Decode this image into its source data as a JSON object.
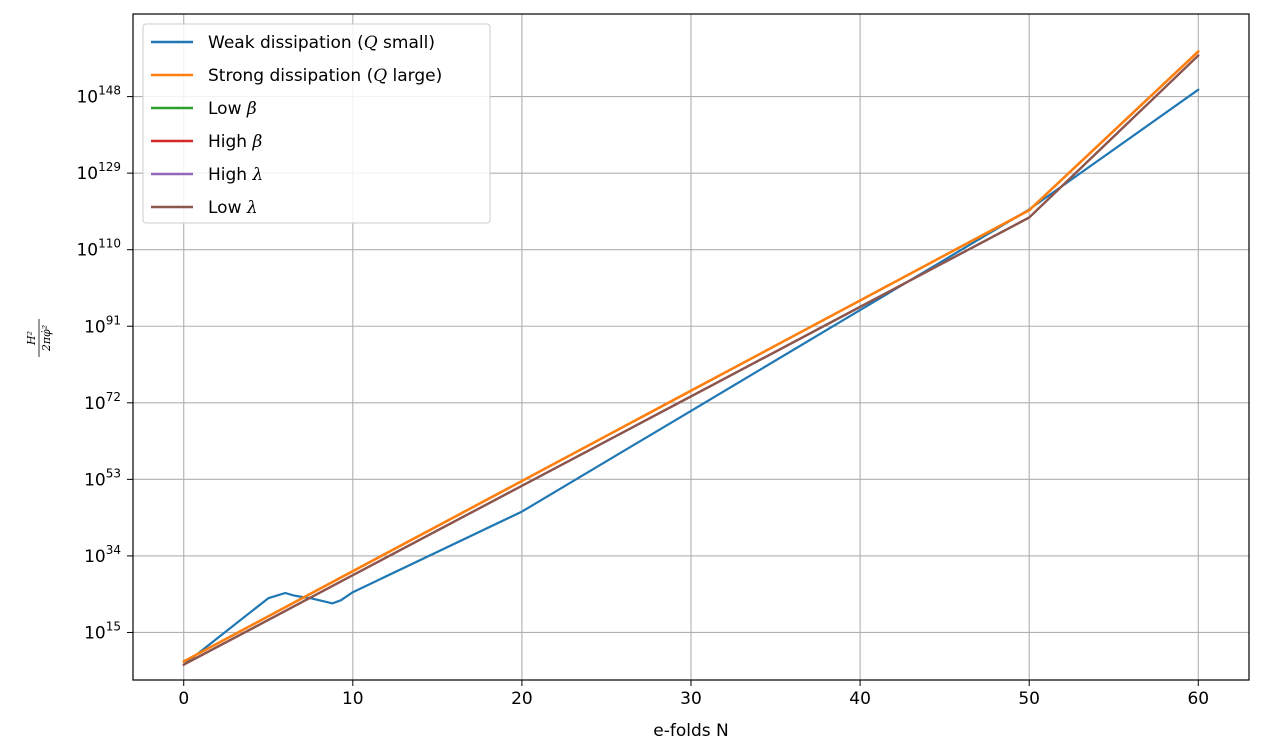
{
  "chart_data": {
    "type": "line",
    "xlabel": "e-folds N",
    "ylabel": "H² / 2πφ̇²",
    "ylabel_num": "H²",
    "ylabel_den": "2πφ̇²",
    "xlim": [
      -3,
      63
    ],
    "ylim_log10": [
      3.2,
      168.5
    ],
    "y_scale": "log",
    "grid": true,
    "legend_position": "top-left",
    "x_ticks": [
      0,
      10,
      20,
      30,
      40,
      50,
      60
    ],
    "x_tick_labels": [
      "0",
      "10",
      "20",
      "30",
      "40",
      "50",
      "60"
    ],
    "y_ticks_log10": [
      15,
      34,
      53,
      72,
      91,
      110,
      129,
      148
    ],
    "y_tick_labels": [
      {
        "base": "10",
        "exp": "15"
      },
      {
        "base": "10",
        "exp": "34"
      },
      {
        "base": "10",
        "exp": "53"
      },
      {
        "base": "10",
        "exp": "72"
      },
      {
        "base": "10",
        "exp": "91"
      },
      {
        "base": "10",
        "exp": "110"
      },
      {
        "base": "10",
        "exp": "129"
      },
      {
        "base": "10",
        "exp": "148"
      }
    ],
    "series": [
      {
        "name": "Weak dissipation (Q small)",
        "legend_label": {
          "pre": "Weak dissipation (",
          "sym": "Q",
          "post": " small)"
        },
        "color": "#1f77b4",
        "x": [
          0,
          5,
          6,
          6.5,
          7,
          7.5,
          8,
          8.5,
          8.8,
          9.3,
          10,
          20,
          30,
          40,
          50,
          60
        ],
        "log10_y": [
          7,
          23.5,
          24.8,
          24.2,
          23.8,
          23.5,
          23,
          22.5,
          22.2,
          23,
          25,
          45,
          70,
          95,
          120,
          149.7
        ]
      },
      {
        "name": "Strong dissipation (Q large)",
        "legend_label": {
          "pre": "Strong dissipation (",
          "sym": "Q",
          "post": " large)"
        },
        "color": "#ff7f0e",
        "x": [
          0,
          10,
          20,
          30,
          40,
          50,
          60
        ],
        "log10_y": [
          7.8,
          30.2,
          52.6,
          75,
          97.4,
          119.8,
          159.2
        ]
      },
      {
        "name": "Low β",
        "legend_label": {
          "pre": "Low ",
          "sym": "β",
          "post": ""
        },
        "color": "#2ca02c",
        "x": [
          0,
          10,
          20,
          30,
          40,
          50,
          60
        ],
        "log10_y": [
          7,
          29.2,
          51.4,
          73.6,
          95.8,
          118,
          158.2
        ]
      },
      {
        "name": "High β",
        "legend_label": {
          "pre": "High ",
          "sym": "β",
          "post": ""
        },
        "color": "#d62728",
        "x": [
          0,
          10,
          20,
          30,
          40,
          50,
          60
        ],
        "log10_y": [
          7,
          29.2,
          51.4,
          73.6,
          95.8,
          118,
          158.2
        ]
      },
      {
        "name": "High λ",
        "legend_label": {
          "pre": "High ",
          "sym": "λ",
          "post": ""
        },
        "color": "#9467bd",
        "x": [
          0,
          10,
          20,
          30,
          40,
          50,
          60
        ],
        "log10_y": [
          7,
          29.2,
          51.4,
          73.6,
          95.8,
          118,
          158.2
        ]
      },
      {
        "name": "Low λ",
        "legend_label": {
          "pre": "Low ",
          "sym": "λ",
          "post": ""
        },
        "color": "#8c564b",
        "x": [
          0,
          10,
          20,
          30,
          40,
          50,
          60
        ],
        "log10_y": [
          7,
          29.2,
          51.4,
          73.6,
          95.8,
          118,
          158.2
        ]
      }
    ]
  }
}
